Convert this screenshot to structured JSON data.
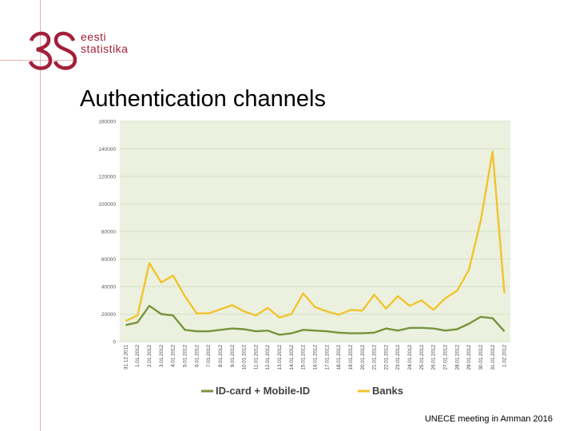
{
  "slide": {
    "title": "Authentication channels",
    "footer": "UNECE meeting in Amman 2016",
    "logo": {
      "line1": "eesti",
      "line2": "statistika",
      "color": "#a3203a"
    }
  },
  "chart_data": {
    "type": "line",
    "title": "",
    "xlabel": "",
    "ylabel": "",
    "ylim": [
      0,
      160000
    ],
    "yticks": [
      0,
      20000,
      40000,
      60000,
      80000,
      100000,
      120000,
      140000,
      160000
    ],
    "grid": true,
    "legend_position": "bottom",
    "categories": [
      "31.12.2011",
      "1.01.2012",
      "2.01.2012",
      "3.01.2012",
      "4.01.2012",
      "5.01.2012",
      "6.01.2012",
      "7.01.2012",
      "8.01.2012",
      "9.01.2012",
      "10.01.2012",
      "11.01.2012",
      "12.01.2012",
      "13.01.2012",
      "14.01.2012",
      "15.01.2012",
      "16.01.2012",
      "17.01.2012",
      "18.01.2012",
      "19.01.2012",
      "20.01.2012",
      "21.01.2012",
      "22.01.2012",
      "23.01.2012",
      "24.01.2012",
      "25.01.2012",
      "26.01.2012",
      "27.01.2012",
      "28.01.2012",
      "29.01.2012",
      "30.01.2012",
      "31.01.2012",
      "1.02.2012"
    ],
    "series": [
      {
        "name": "ID-card + Mobile-ID",
        "color": "#77933c",
        "values": [
          12000,
          14000,
          26000,
          20000,
          19000,
          8500,
          7500,
          7500,
          8500,
          9500,
          9000,
          7500,
          8000,
          5000,
          6000,
          8500,
          8000,
          7500,
          6500,
          6000,
          6000,
          6500,
          9500,
          8000,
          10000,
          10000,
          9500,
          8000,
          9000,
          13000,
          18000,
          17000,
          7500
        ]
      },
      {
        "name": "Banks",
        "color": "#f2c32e",
        "values": [
          15000,
          19000,
          57000,
          43000,
          48000,
          33000,
          20500,
          20500,
          23500,
          26500,
          22000,
          19000,
          24500,
          17500,
          20000,
          35000,
          25000,
          22000,
          19500,
          23000,
          22500,
          34000,
          24000,
          33000,
          26000,
          30000,
          23000,
          31500,
          37000,
          52000,
          88000,
          138000,
          35000
        ]
      }
    ]
  }
}
